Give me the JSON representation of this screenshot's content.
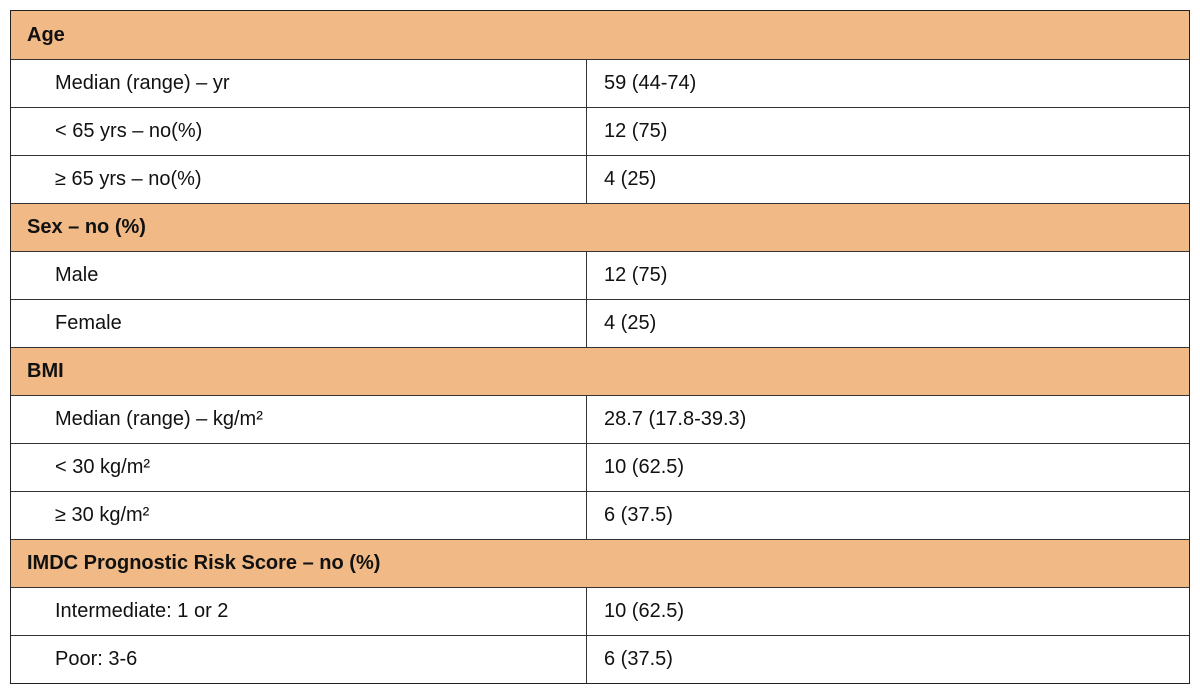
{
  "table": {
    "sections": [
      {
        "title": "Age",
        "rows": [
          [
            "Median (range) – yr",
            "59 (44-74)"
          ],
          [
            "< 65 yrs – no(%)",
            "12 (75)"
          ],
          [
            "≥ 65 yrs – no(%)",
            "4 (25)"
          ]
        ]
      },
      {
        "title": "Sex – no (%)",
        "rows": [
          [
            "Male",
            "12 (75)"
          ],
          [
            "Female",
            "4 (25)"
          ]
        ]
      },
      {
        "title": "BMI",
        "rows": [
          [
            "Median (range) – kg/m²",
            "28.7 (17.8-39.3)"
          ],
          [
            "< 30 kg/m²",
            "10 (62.5)"
          ],
          [
            "≥ 30 kg/m²",
            "6 (37.5)"
          ]
        ]
      },
      {
        "title": "IMDC Prognostic Risk Score – no (%)",
        "rows": [
          [
            "Intermediate: 1 or 2",
            "10 (62.5)"
          ],
          [
            "Poor: 3-6",
            "6 (37.5)"
          ]
        ]
      }
    ]
  }
}
